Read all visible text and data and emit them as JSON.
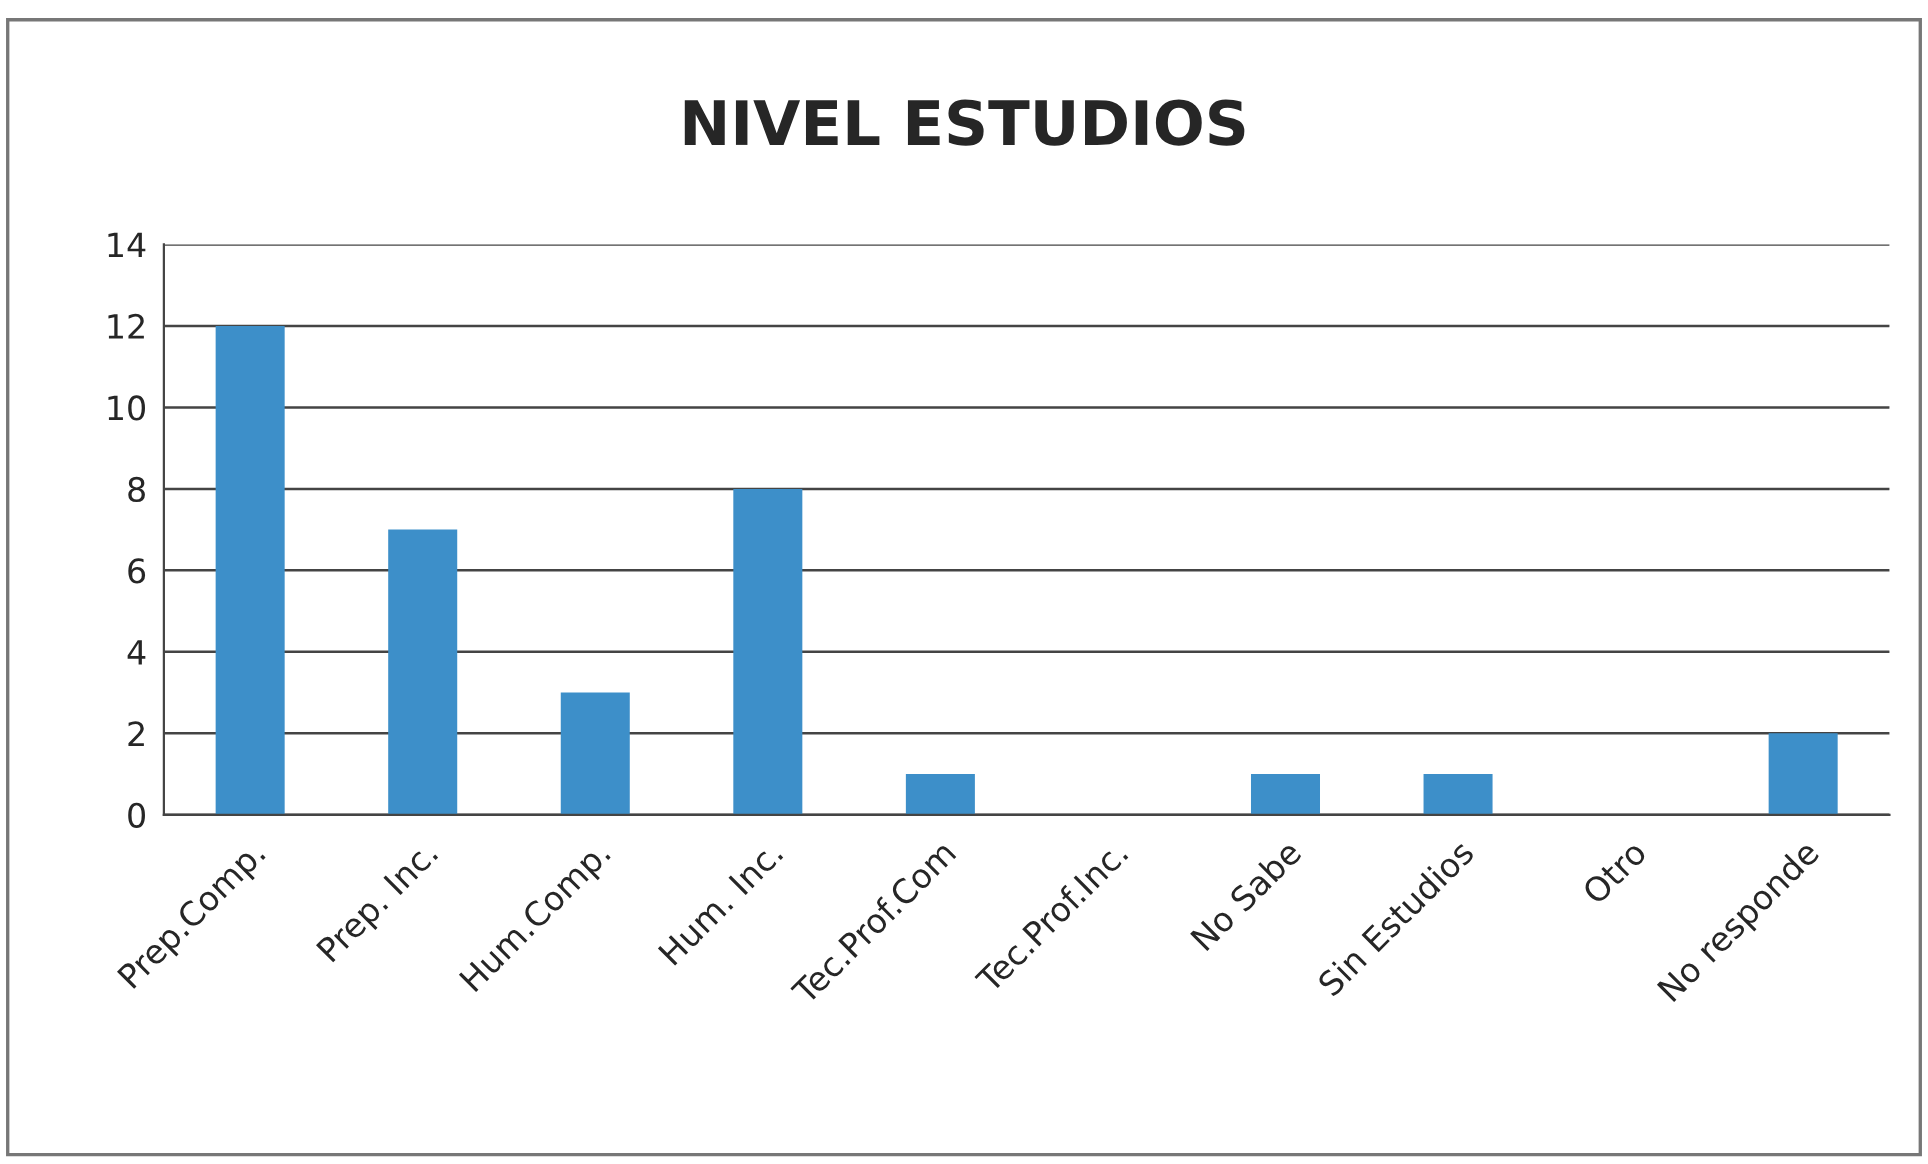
{
  "chart_data": {
    "type": "bar",
    "title": "NIVEL ESTUDIOS",
    "categories": [
      "Prep.Comp.",
      "Prep. Inc.",
      "Hum.Comp.",
      "Hum. Inc.",
      "Tec.Prof.Com",
      "Tec.Prof.Inc.",
      "No Sabe",
      "Sin Estudios",
      "Otro",
      "No responde"
    ],
    "values": [
      12,
      7,
      3,
      8,
      1,
      0,
      1,
      1,
      0,
      2
    ],
    "color": "#3d8fc9",
    "ylim": [
      0,
      14
    ],
    "yticks": [
      0,
      2,
      4,
      6,
      8,
      10,
      12,
      14
    ],
    "grid": "y",
    "legend": false
  }
}
